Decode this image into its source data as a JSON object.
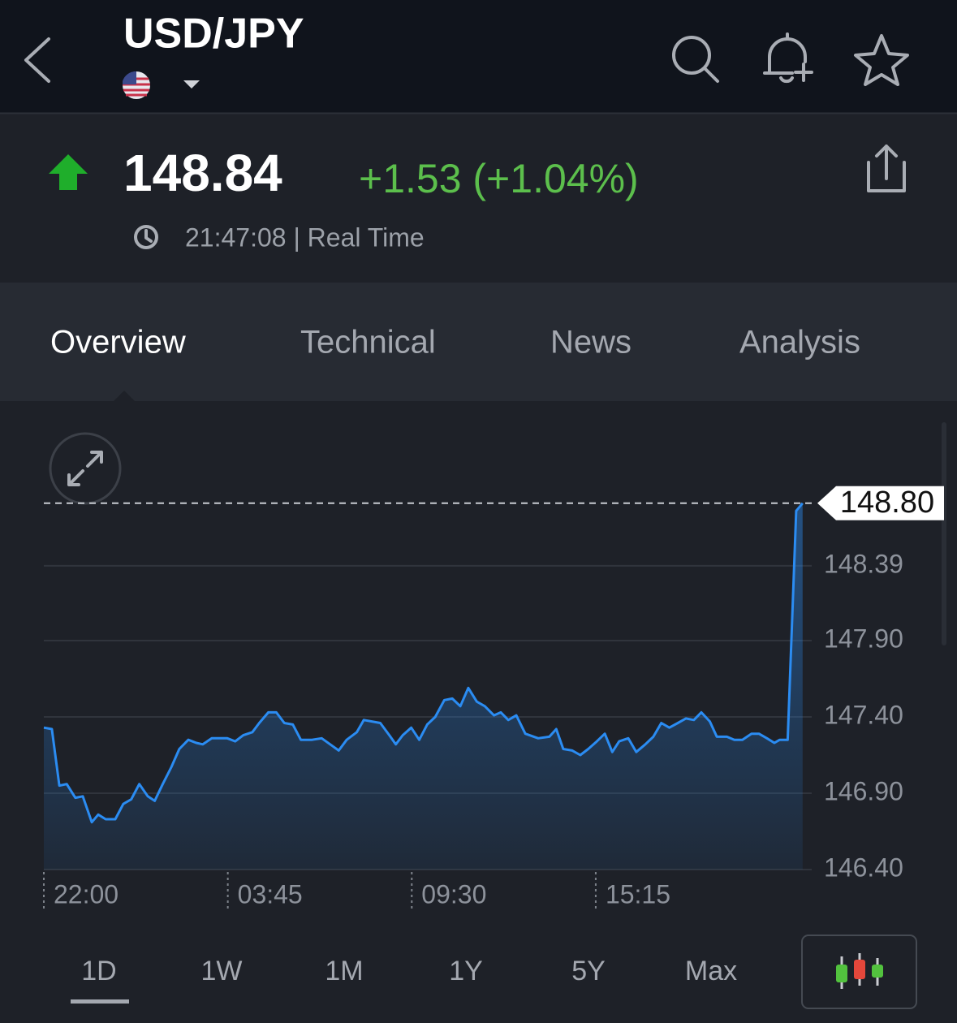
{
  "header": {
    "title": "USD/JPY"
  },
  "quote": {
    "price": "148.84",
    "change": "+1.53 (+1.04%)",
    "time": "21:47:08 | Real Time"
  },
  "tabs": [
    "Overview",
    "Technical",
    "News",
    "Analysis"
  ],
  "chart_data": {
    "type": "line",
    "x": [
      0,
      15,
      29,
      43,
      59,
      73,
      90,
      102,
      116,
      134,
      149,
      164,
      179,
      195,
      208,
      223,
      239,
      254,
      271,
      286,
      298,
      315,
      344,
      359,
      374,
      391,
      404,
      421,
      436,
      451,
      467,
      482,
      503,
      521,
      541,
      553,
      568,
      587,
      600,
      631,
      648,
      660,
      673,
      689,
      704,
      719,
      734,
      751,
      766,
      781,
      796,
      812,
      827,
      844,
      857,
      871,
      886,
      903,
      927,
      948,
      961,
      974,
      991,
      1006,
      1021,
      1037,
      1052,
      1066,
      1079,
      1096,
      1111,
      1128,
      1143,
      1158,
      1173,
      1189,
      1204,
      1219,
      1233,
      1249,
      1262,
      1281,
      1295,
      1310,
      1327,
      1341,
      1356,
      1370,
      1380,
      1395,
      1411,
      1423
    ],
    "series": [
      {
        "color": "#2b8cf2",
        "values": [
          147.33,
          147.32,
          146.95,
          146.96,
          146.87,
          146.88,
          146.71,
          146.76,
          146.73,
          146.73,
          146.83,
          146.86,
          146.96,
          146.88,
          146.85,
          146.96,
          147.07,
          147.19,
          147.25,
          147.23,
          147.22,
          147.26,
          147.26,
          147.24,
          147.28,
          147.3,
          147.36,
          147.43,
          147.43,
          147.36,
          147.35,
          147.25,
          147.25,
          147.26,
          147.21,
          147.18,
          147.25,
          147.3,
          147.38,
          147.36,
          147.28,
          147.22,
          147.28,
          147.33,
          147.25,
          147.35,
          147.4,
          147.51,
          147.52,
          147.47,
          147.59,
          147.5,
          147.47,
          147.41,
          147.43,
          147.38,
          147.41,
          147.29,
          147.26,
          147.27,
          147.32,
          147.19,
          147.18,
          147.15,
          147.19,
          147.24,
          147.29,
          147.17,
          147.24,
          147.26,
          147.17,
          147.22,
          147.27,
          147.36,
          147.33,
          147.36,
          147.39,
          147.38,
          147.43,
          147.37,
          147.27,
          147.27,
          147.25,
          147.25,
          147.29,
          147.29,
          147.26,
          147.23,
          147.25,
          147.25,
          148.75,
          148.8
        ]
      }
    ],
    "xlim": [
      0,
      1440
    ],
    "xticks": [
      {
        "value": 0,
        "label": "22:00"
      },
      {
        "value": 345,
        "label": "03:45"
      },
      {
        "value": 690,
        "label": "09:30"
      },
      {
        "value": 1035,
        "label": "15:15"
      }
    ],
    "ylim": [
      146.4,
      148.9
    ],
    "yticks": [
      {
        "value": 146.4,
        "label": "146.40"
      },
      {
        "value": 146.9,
        "label": "146.90"
      },
      {
        "value": 147.4,
        "label": "147.40"
      },
      {
        "value": 147.9,
        "label": "147.90"
      },
      148.39
    ],
    "grid": true,
    "price_line": {
      "value": 148.8,
      "label": "148.80"
    }
  },
  "ranges": [
    "1D",
    "1W",
    "1M",
    "1Y",
    "5Y",
    "Max"
  ]
}
